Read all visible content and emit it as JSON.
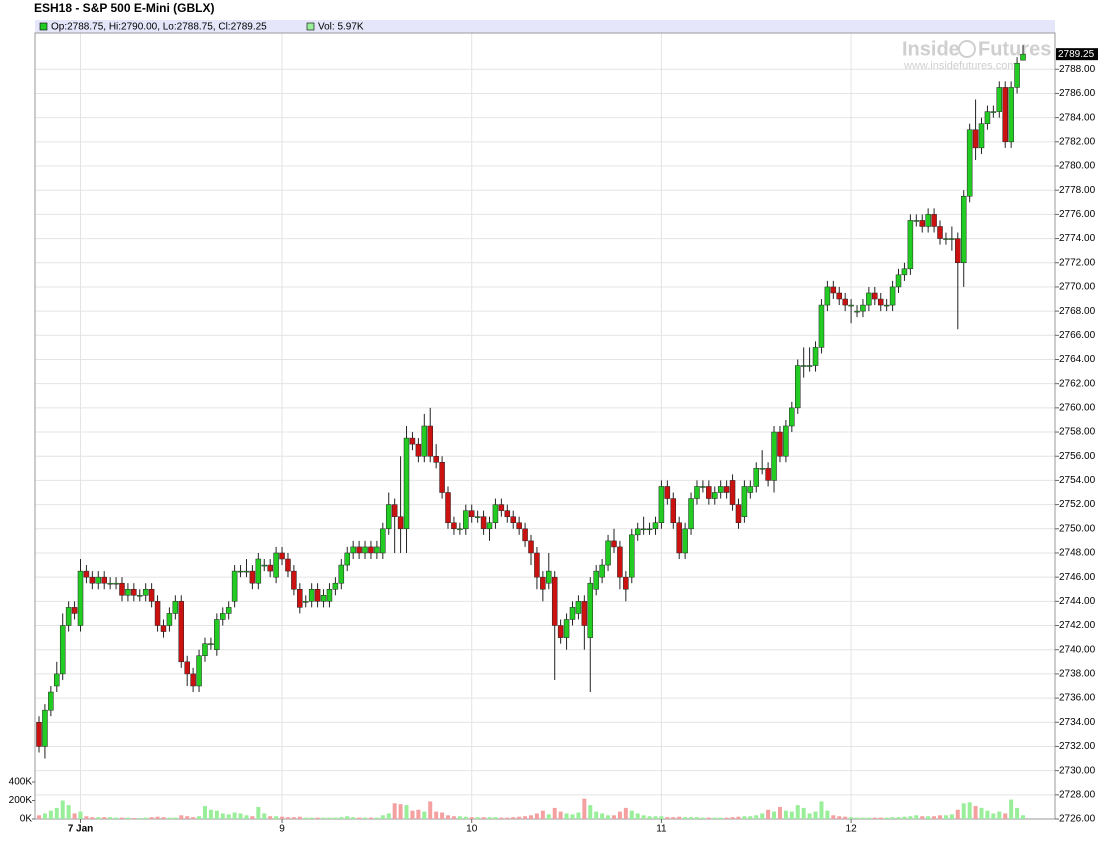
{
  "chart_data": {
    "type": "candlestick",
    "title": "ESH18 - S&P 500 E-Mini (GBLX)",
    "info": "Op:2788.75, Hi:2790.00, Lo:2788.75, Cl:2789.25",
    "volume_info": "Vol: 5.97K",
    "watermark": {
      "left": "Inside",
      "right": "Futures",
      "url": "www.insidefutures.com"
    },
    "up_color": "#22cc22",
    "down_color": "#cc1111",
    "volume_up_color": "#99ee99",
    "volume_down_color": "#f4a0a0",
    "grid": true,
    "categories": [
      null,
      null,
      null,
      null,
      null,
      null,
      null,
      "7 Jan",
      null,
      null,
      null,
      null,
      null,
      null,
      null,
      null,
      null,
      null,
      null,
      null,
      null,
      null,
      null,
      null,
      null,
      null,
      null,
      null,
      null,
      null,
      null,
      null,
      null,
      null,
      null,
      null,
      null,
      null,
      null,
      null,
      null,
      "9",
      null,
      null,
      null,
      null,
      null,
      null,
      null,
      null,
      null,
      null,
      null,
      null,
      null,
      null,
      null,
      null,
      null,
      null,
      null,
      null,
      null,
      null,
      null,
      null,
      null,
      null,
      null,
      null,
      null,
      null,
      null,
      "10",
      null,
      null,
      null,
      null,
      null,
      null,
      null,
      null,
      null,
      null,
      null,
      null,
      null,
      null,
      null,
      null,
      null,
      null,
      null,
      null,
      null,
      null,
      null,
      null,
      null,
      null,
      null,
      null,
      null,
      null,
      null,
      "11",
      null,
      null,
      null,
      null,
      null,
      null,
      null,
      null,
      null,
      null,
      null,
      null,
      null,
      null,
      null,
      null,
      null,
      null,
      null,
      null,
      null,
      null,
      null,
      null,
      null,
      null,
      null,
      null,
      null,
      null,
      null,
      "12",
      null,
      null,
      null,
      null,
      null,
      null,
      null,
      null,
      null,
      null,
      null,
      null,
      null,
      null,
      null,
      null,
      null,
      null,
      null,
      null,
      null,
      null,
      null,
      null,
      null,
      null,
      null,
      null,
      null
    ],
    "open": [
      2734,
      2732,
      2735,
      2737,
      2738,
      2742,
      2743.5,
      2742,
      2746.5,
      2746,
      2745.5,
      2746,
      2745.5,
      2745.5,
      2745.5,
      2744.5,
      2745,
      2744.5,
      2744.5,
      2745,
      2744,
      2742,
      2742,
      2743,
      2744,
      2739,
      2738,
      2737,
      2739.5,
      2740.5,
      2740,
      2742.5,
      2743,
      2744,
      2746.5,
      2746.5,
      2746.5,
      2745.5,
      2747,
      2747,
      2746,
      2748,
      2747.5,
      2746.5,
      2745,
      2744,
      2744,
      2745,
      2744,
      2744,
      2745,
      2745.5,
      2747,
      2748,
      2748.5,
      2748,
      2748.5,
      2748,
      2748,
      2750,
      2752,
      2751,
      2750,
      2757.5,
      2757,
      2756,
      2758.5,
      2756,
      2755.5,
      2753,
      2750.5,
      2750,
      2750,
      2751.5,
      2751,
      2751,
      2750,
      2750.5,
      2752,
      2751.5,
      2751,
      2750.5,
      2750,
      2749,
      2748,
      2746,
      2745.5,
      2746,
      2742,
      2741,
      2742.5,
      2743,
      2744,
      2741,
      2745,
      2746,
      2747,
      2749,
      2748.5,
      2746,
      2746,
      2749.5,
      2750,
      2750,
      2750,
      2750.5,
      2753.5,
      2752.5,
      2750.5,
      2748,
      2750,
      2752.5,
      2753.5,
      2753.5,
      2752.5,
      2753,
      2753.5,
      2754,
      2752,
      2751,
      2753,
      2753.5,
      2755,
      2755,
      2754,
      2758,
      2756,
      2758.5,
      2760,
      2763.5,
      2763.5,
      2763.5,
      2765,
      2768.5,
      2770,
      2769.5,
      2769,
      2768.5,
      2768,
      2768,
      2768.5,
      2769.5,
      2769,
      2768.5,
      2768.5,
      2770,
      2771,
      2771.5,
      2775.5,
      2775.5,
      2775,
      2776,
      2775,
      2774,
      2774,
      2774,
      2772,
      2777.5,
      2783,
      2781.5,
      2783.5,
      2784.5,
      2784.5,
      2786.5,
      2782,
      2786.5,
      2788.75
    ],
    "high": [
      2734.5,
      2735.5,
      2737,
      2739,
      2743,
      2744,
      2744,
      2747.5,
      2747,
      2746.5,
      2746.5,
      2746.5,
      2746,
      2746,
      2746,
      2745.5,
      2745.5,
      2745,
      2745.5,
      2745.5,
      2744.5,
      2742.5,
      2743.5,
      2744.5,
      2744.5,
      2739.5,
      2738.5,
      2740,
      2741,
      2741,
      2743,
      2743.5,
      2744,
      2747,
      2747,
      2747.5,
      2747,
      2748,
      2747.5,
      2747.5,
      2748.5,
      2748.5,
      2748,
      2747,
      2745.5,
      2744.5,
      2745.5,
      2745.5,
      2745,
      2745.5,
      2746,
      2747.5,
      2748.5,
      2749,
      2749,
      2749,
      2749,
      2749,
      2750.5,
      2753,
      2752.5,
      2756,
      2758.5,
      2758,
      2757.5,
      2759.5,
      2760,
      2757,
      2756,
      2753.5,
      2751,
      2750.5,
      2752,
      2752,
      2751.5,
      2751.5,
      2751,
      2752.5,
      2752.5,
      2752,
      2751.5,
      2751,
      2750.5,
      2749.5,
      2748.5,
      2746.5,
      2748,
      2746.5,
      2742.5,
      2743,
      2744,
      2744.5,
      2744.5,
      2746,
      2747,
      2747.5,
      2749.5,
      2750,
      2749,
      2746.5,
      2750,
      2750.5,
      2751,
      2750.5,
      2751,
      2754,
      2754,
      2753,
      2751,
      2750.5,
      2753,
      2754,
      2754,
      2754,
      2753.5,
      2754,
      2754,
      2754.5,
      2752.5,
      2754,
      2754,
      2755.5,
      2756.5,
      2755.5,
      2758.5,
      2758.5,
      2759,
      2760.5,
      2764,
      2765,
      2765,
      2765.5,
      2769,
      2770.5,
      2770.5,
      2770,
      2769.5,
      2769,
      2768.5,
      2769,
      2770,
      2770,
      2769.5,
      2769,
      2770.5,
      2771.5,
      2772,
      2776,
      2776,
      2776,
      2776.5,
      2776.5,
      2775.5,
      2774.5,
      2775,
      2774.5,
      2778,
      2783.5,
      2785.5,
      2784,
      2785,
      2785,
      2787,
      2787,
      2787,
      2789,
      2790
    ],
    "low": [
      2731.5,
      2731,
      2734.5,
      2736.5,
      2737.5,
      2741.5,
      2742.5,
      2741.5,
      2745.5,
      2745,
      2745,
      2745,
      2745,
      2745,
      2744,
      2744,
      2744,
      2744,
      2744,
      2743.5,
      2741.5,
      2741,
      2741.5,
      2742.5,
      2738.5,
      2737,
      2736.5,
      2736.5,
      2739,
      2740,
      2739.5,
      2742,
      2742.5,
      2743.5,
      2746,
      2746,
      2745,
      2745,
      2746.5,
      2746,
      2745.5,
      2747,
      2746,
      2744.5,
      2743,
      2743.5,
      2743.5,
      2743.5,
      2743.5,
      2743.5,
      2744.5,
      2745,
      2746.5,
      2747.5,
      2747.5,
      2747.5,
      2747.5,
      2747.5,
      2747.5,
      2749.5,
      2748,
      2748,
      2748,
      2756.5,
      2755.5,
      2755.5,
      2755.5,
      2755,
      2752.5,
      2750,
      2749.5,
      2749.5,
      2749.5,
      2750.5,
      2750.5,
      2749.5,
      2749,
      2750,
      2751,
      2750.5,
      2750,
      2749.5,
      2748.5,
      2747,
      2745,
      2744,
      2745,
      2737.5,
      2740.5,
      2740,
      2742,
      2742.5,
      2740,
      2736.5,
      2744.5,
      2745.5,
      2746.5,
      2748,
      2745,
      2744,
      2745.5,
      2749,
      2749.5,
      2749.5,
      2749.5,
      2750,
      2752,
      2750,
      2747.5,
      2747.5,
      2749.5,
      2752,
      2753,
      2752,
      2752,
      2752.5,
      2752.5,
      2751.5,
      2750,
      2750.5,
      2752.5,
      2753,
      2754.5,
      2753.5,
      2753,
      2755.5,
      2755.5,
      2758,
      2759.5,
      2762.5,
      2763,
      2763,
      2764.5,
      2768,
      2769,
      2768.5,
      2768,
      2767,
      2767.5,
      2767.5,
      2768,
      2768.5,
      2768,
      2768,
      2768,
      2769.5,
      2770.5,
      2771,
      2775,
      2774.5,
      2774.5,
      2774.5,
      2773.5,
      2773.5,
      2773,
      2766.5,
      2770,
      2777,
      2780.5,
      2781,
      2783,
      2784,
      2784,
      2781.5,
      2781.5,
      2786,
      2788.75
    ],
    "close": [
      2732,
      2735,
      2736.5,
      2738,
      2742,
      2743.5,
      2743,
      2746.5,
      2746,
      2745.5,
      2746,
      2745.5,
      2745.5,
      2745.5,
      2744.5,
      2745,
      2744.5,
      2744.5,
      2745,
      2744,
      2742,
      2741.5,
      2743,
      2744,
      2739,
      2738,
      2737,
      2739.5,
      2740.5,
      2740.5,
      2742.5,
      2743,
      2743.5,
      2746.5,
      2746.5,
      2746.5,
      2745.5,
      2747.5,
      2747,
      2746.5,
      2748,
      2747.5,
      2746.5,
      2745,
      2743.5,
      2744,
      2745,
      2744,
      2744.5,
      2745,
      2745.5,
      2747,
      2748,
      2748.5,
      2748,
      2748.5,
      2748,
      2748.5,
      2750,
      2752,
      2751,
      2750,
      2757.5,
      2757,
      2756,
      2758.5,
      2756,
      2755.5,
      2753,
      2750.5,
      2750,
      2750,
      2751.5,
      2751,
      2751,
      2750,
      2750.5,
      2752,
      2751.5,
      2751,
      2750.5,
      2750,
      2749,
      2748,
      2746,
      2745,
      2746.5,
      2742,
      2741,
      2742.5,
      2743.5,
      2744,
      2742,
      2745.5,
      2746.5,
      2747,
      2749,
      2748.5,
      2746,
      2745,
      2749.5,
      2750,
      2750,
      2750,
      2750.5,
      2753.5,
      2752.5,
      2750.5,
      2748,
      2750,
      2752.5,
      2753.5,
      2753.5,
      2752.5,
      2753,
      2753.5,
      2753,
      2752,
      2750.5,
      2753.5,
      2753.5,
      2755,
      2755,
      2754,
      2758,
      2756,
      2758.5,
      2760,
      2763.5,
      2763.5,
      2763.5,
      2765,
      2768.5,
      2770,
      2769.5,
      2769,
      2768.5,
      2768.5,
      2768,
      2768.5,
      2769.5,
      2769,
      2768.5,
      2768.5,
      2770,
      2771,
      2771.5,
      2775.5,
      2775.5,
      2775,
      2776,
      2775,
      2774,
      2774,
      2774,
      2772,
      2777.5,
      2783,
      2781.5,
      2783.5,
      2784.5,
      2784.5,
      2786.5,
      2782,
      2786.5,
      2788.5,
      2789.25
    ],
    "volume": [
      40000,
      60000,
      90000,
      120000,
      200000,
      150000,
      60000,
      80000,
      30000,
      20000,
      20000,
      20000,
      20000,
      15000,
      15000,
      15000,
      10000,
      10000,
      15000,
      20000,
      25000,
      20000,
      15000,
      15000,
      40000,
      30000,
      20000,
      30000,
      140000,
      100000,
      90000,
      60000,
      50000,
      70000,
      60000,
      40000,
      30000,
      130000,
      60000,
      30000,
      30000,
      25000,
      20000,
      20000,
      25000,
      15000,
      15000,
      15000,
      15000,
      15000,
      15000,
      20000,
      30000,
      20000,
      15000,
      15000,
      15000,
      15000,
      40000,
      60000,
      170000,
      160000,
      150000,
      90000,
      100000,
      80000,
      190000,
      80000,
      70000,
      40000,
      30000,
      30000,
      25000,
      20000,
      20000,
      20000,
      20000,
      20000,
      15000,
      15000,
      20000,
      25000,
      30000,
      40000,
      60000,
      90000,
      50000,
      120000,
      80000,
      60000,
      50000,
      70000,
      220000,
      150000,
      80000,
      60000,
      40000,
      40000,
      80000,
      120000,
      90000,
      60000,
      40000,
      30000,
      30000,
      30000,
      20000,
      20000,
      25000,
      20000,
      20000,
      20000,
      15000,
      15000,
      15000,
      15000,
      15000,
      20000,
      25000,
      30000,
      30000,
      40000,
      60000,
      100000,
      80000,
      130000,
      90000,
      80000,
      150000,
      120000,
      60000,
      80000,
      190000,
      90000,
      40000,
      30000,
      25000,
      20000,
      15000,
      15000,
      15000,
      15000,
      15000,
      15000,
      20000,
      20000,
      25000,
      30000,
      40000,
      30000,
      30000,
      30000,
      40000,
      40000,
      50000,
      100000,
      170000,
      180000,
      140000,
      120000,
      90000,
      60000,
      80000,
      60000,
      210000,
      120000,
      40000
    ],
    "ylim": [
      2726,
      2791
    ],
    "yticks": [
      {
        "value": 2726,
        "label": "2726.00"
      },
      {
        "value": 2728,
        "label": "2728.00"
      },
      {
        "value": 2730,
        "label": "2730.00"
      },
      {
        "value": 2732,
        "label": "2732.00"
      },
      {
        "value": 2734,
        "label": "2734.00"
      },
      {
        "value": 2736,
        "label": "2736.00"
      },
      {
        "value": 2738,
        "label": "2738.00"
      },
      {
        "value": 2740,
        "label": "2740.00"
      },
      {
        "value": 2742,
        "label": "2742.00"
      },
      {
        "value": 2744,
        "label": "2744.00"
      },
      {
        "value": 2746,
        "label": "2746.00"
      },
      {
        "value": 2748,
        "label": "2748.00"
      },
      {
        "value": 2750,
        "label": "2750.00"
      },
      {
        "value": 2752,
        "label": "2752.00"
      },
      {
        "value": 2754,
        "label": "2754.00"
      },
      {
        "value": 2756,
        "label": "2756.00"
      },
      {
        "value": 2758,
        "label": "2758.00"
      },
      {
        "value": 2760,
        "label": "2760.00"
      },
      {
        "value": 2762,
        "label": "2762.00"
      },
      {
        "value": 2764,
        "label": "2764.00"
      },
      {
        "value": 2766,
        "label": "2766.00"
      },
      {
        "value": 2768,
        "label": "2768.00"
      },
      {
        "value": 2770,
        "label": "2770.00"
      },
      {
        "value": 2772,
        "label": "2772.00"
      },
      {
        "value": 2774,
        "label": "2774.00"
      },
      {
        "value": 2776,
        "label": "2776.00"
      },
      {
        "value": 2778,
        "label": "2778.00"
      },
      {
        "value": 2780,
        "label": "2780.00"
      },
      {
        "value": 2782,
        "label": "2782.00"
      },
      {
        "value": 2784,
        "label": "2784.00"
      },
      {
        "value": 2786,
        "label": "2786.00"
      },
      {
        "value": 2788,
        "label": "2788.00"
      }
    ],
    "volume_ylim": [
      0,
      400000
    ],
    "volume_yticks": [
      {
        "value": 0,
        "label": "0K"
      },
      {
        "value": 200000,
        "label": "200K"
      },
      {
        "value": 400000,
        "label": "400K"
      }
    ]
  }
}
